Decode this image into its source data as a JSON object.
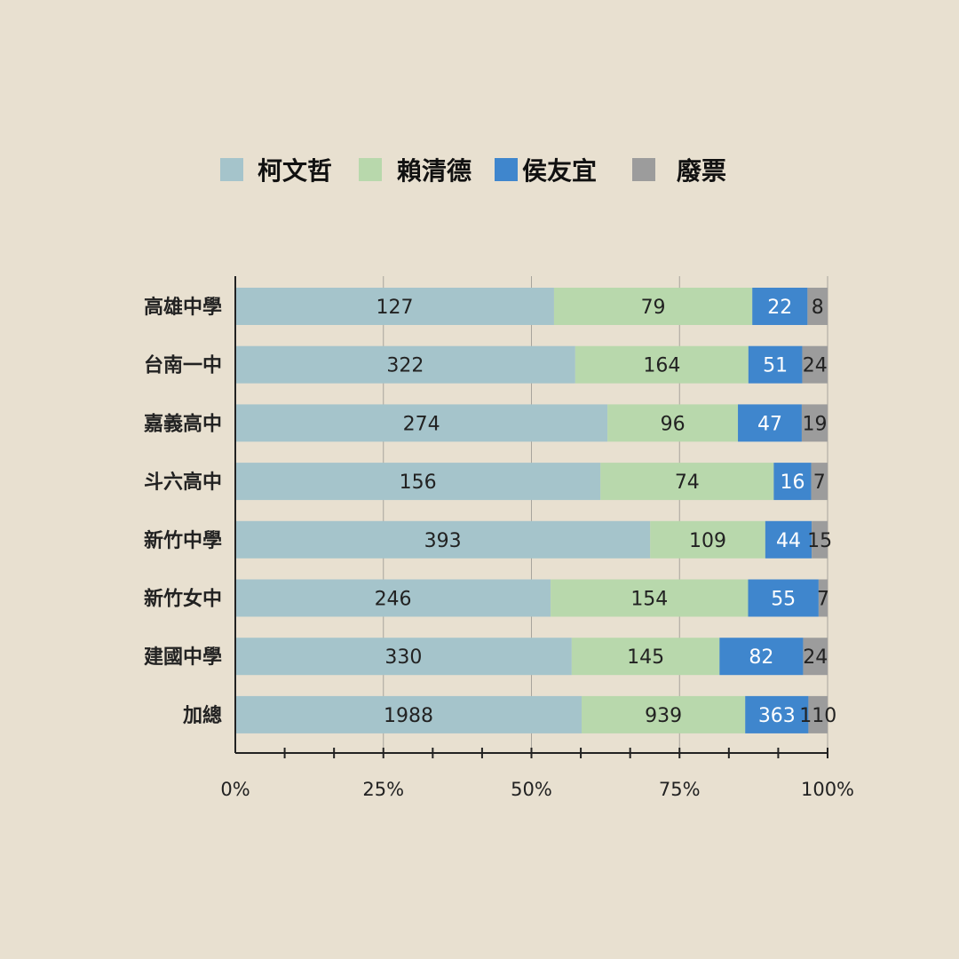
{
  "chart_data": {
    "type": "bar",
    "orientation": "horizontal",
    "stacked": "percent",
    "categories": [
      "高雄中學",
      "台南一中",
      "嘉義高中",
      "斗六高中",
      "新竹中學",
      "新竹女中",
      "建國中學",
      "加總"
    ],
    "series": [
      {
        "name": "柯文哲",
        "color": "#a5c4cb",
        "values": [
          127,
          322,
          274,
          156,
          393,
          246,
          330,
          1988
        ]
      },
      {
        "name": "賴清德",
        "color": "#b8d8ac",
        "values": [
          79,
          164,
          96,
          74,
          109,
          154,
          145,
          939
        ]
      },
      {
        "name": "侯友宜",
        "color": "#3f86cd",
        "values": [
          22,
          51,
          47,
          16,
          44,
          55,
          82,
          363
        ]
      },
      {
        "name": "廢票",
        "color": "#9c9c9c",
        "values": [
          8,
          24,
          19,
          7,
          15,
          7,
          24,
          110
        ]
      }
    ],
    "x_ticks": [
      "0%",
      "25%",
      "50%",
      "75%",
      "100%"
    ],
    "xlim": [
      0,
      100
    ],
    "grid": true,
    "legend_position": "top"
  }
}
